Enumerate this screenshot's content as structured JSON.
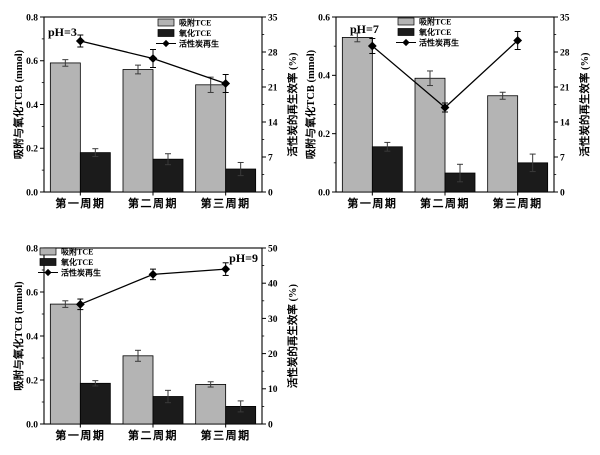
{
  "figure": {
    "background": "#ffffff",
    "axis_color": "#000000",
    "left_axis_label": "吸附与氧化TCB (mmol)",
    "right_axis_label": "活性炭的再生效率 (%)",
    "categories": [
      "第一周期",
      "第二周期",
      "第三周期"
    ],
    "legend": {
      "adsorbed_label": "吸附TCE",
      "oxidized_label": "氧化TCE",
      "regeneration_label": "活性炭再生"
    },
    "colors": {
      "adsorbed_bar": "#b4b4b4",
      "oxidized_bar": "#1b1b1b",
      "line": "#000000",
      "error_bar": "#3a3a3a"
    }
  },
  "chart_data": [
    {
      "type": "bar",
      "ph_label": "pH=3",
      "ph_label_position": "top-left",
      "legend_position": "top-center-right",
      "categories": [
        "第一周期",
        "第二周期",
        "第三周期"
      ],
      "left_axis": {
        "label": "吸附与氧化TCB (mmol)",
        "min": 0,
        "max": 0.8,
        "tick_labels": [
          "0.0",
          "0.2",
          "0.4",
          "0.6",
          "0.8"
        ]
      },
      "right_axis": {
        "label": "活性炭的再生效率 (%)",
        "min": 0,
        "max": 35,
        "tick_labels": [
          "0",
          "7",
          "14",
          "21",
          "28",
          "35"
        ]
      },
      "series": [
        {
          "name": "吸附TCE",
          "type": "bar",
          "axis": "left",
          "color": "#b4b4b4",
          "values": [
            0.59,
            0.56,
            0.49
          ],
          "errors": [
            0.015,
            0.02,
            0.035
          ]
        },
        {
          "name": "氧化TCE",
          "type": "bar",
          "axis": "left",
          "color": "#1b1b1b",
          "values": [
            0.18,
            0.15,
            0.105
          ],
          "errors": [
            0.018,
            0.025,
            0.03
          ]
        },
        {
          "name": "活性炭再生",
          "type": "line",
          "marker": "diamond",
          "axis": "right",
          "color": "#000000",
          "values": [
            30.2,
            26.7,
            21.7
          ],
          "errors": [
            1.2,
            1.8,
            1.8
          ]
        }
      ]
    },
    {
      "type": "bar",
      "ph_label": "pH=7",
      "ph_label_position": "top-left",
      "legend_position": "top-center",
      "categories": [
        "第一周期",
        "第二周期",
        "第三周期"
      ],
      "left_axis": {
        "label": "吸附与氧化TCB (mmol)",
        "min": 0,
        "max": 0.6,
        "tick_labels": [
          "0.0",
          "0.2",
          "0.4",
          "0.6"
        ]
      },
      "right_axis": {
        "label": "活性炭的再生效率 (%)",
        "min": 0,
        "max": 35,
        "tick_labels": [
          "0",
          "7",
          "14",
          "21",
          "28",
          "35"
        ]
      },
      "series": [
        {
          "name": "吸附TCE",
          "type": "bar",
          "axis": "left",
          "color": "#b4b4b4",
          "values": [
            0.53,
            0.39,
            0.33
          ],
          "errors": [
            0.015,
            0.025,
            0.012
          ]
        },
        {
          "name": "氧化TCE",
          "type": "bar",
          "axis": "left",
          "color": "#1b1b1b",
          "values": [
            0.155,
            0.065,
            0.1
          ],
          "errors": [
            0.015,
            0.03,
            0.03
          ]
        },
        {
          "name": "活性炭再生",
          "type": "line",
          "marker": "diamond",
          "axis": "right",
          "color": "#000000",
          "values": [
            29.2,
            16.9,
            30.3
          ],
          "errors": [
            1.5,
            0.9,
            1.8
          ]
        }
      ]
    },
    {
      "type": "bar",
      "ph_label": "pH=9",
      "ph_label_position": "top-right",
      "legend_position": "top-left",
      "categories": [
        "第一周期",
        "第二周期",
        "第三周期"
      ],
      "left_axis": {
        "label": "吸附与氧化TCB (mmol)",
        "min": 0,
        "max": 0.8,
        "tick_labels": [
          "0.0",
          "0.2",
          "0.4",
          "0.6",
          "0.8"
        ]
      },
      "right_axis": {
        "label": "活性炭的再生效率 (%)",
        "min": 0,
        "max": 50,
        "tick_labels": [
          "0",
          "10",
          "20",
          "30",
          "40",
          "50"
        ]
      },
      "series": [
        {
          "name": "吸附TCE",
          "type": "bar",
          "axis": "left",
          "color": "#b4b4b4",
          "values": [
            0.545,
            0.31,
            0.18
          ],
          "errors": [
            0.015,
            0.025,
            0.012
          ]
        },
        {
          "name": "氧化TCE",
          "type": "bar",
          "axis": "left",
          "color": "#1b1b1b",
          "values": [
            0.185,
            0.125,
            0.08
          ],
          "errors": [
            0.012,
            0.028,
            0.025
          ]
        },
        {
          "name": "活性炭再生",
          "type": "line",
          "marker": "diamond",
          "axis": "right",
          "color": "#000000",
          "values": [
            34,
            42.5,
            44
          ],
          "errors": [
            1.5,
            1.5,
            1.8
          ]
        }
      ]
    }
  ]
}
